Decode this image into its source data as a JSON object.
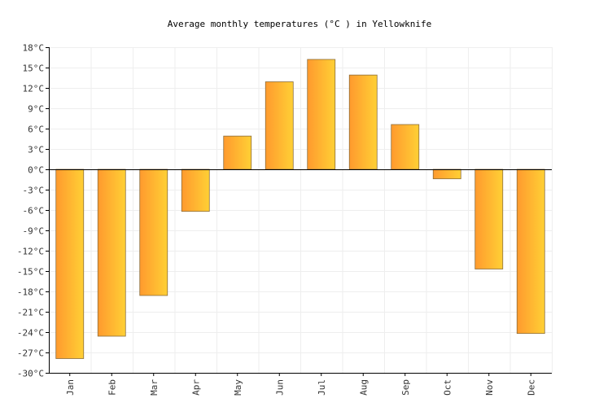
{
  "chart_data": {
    "type": "bar",
    "title": "Average monthly temperatures (°C ) in Yellowknife",
    "xlabel": "",
    "ylabel": "",
    "categories": [
      "Jan",
      "Feb",
      "Mar",
      "Apr",
      "May",
      "Jun",
      "Jul",
      "Aug",
      "Sep",
      "Oct",
      "Nov",
      "Dec"
    ],
    "values": [
      -27.9,
      -24.6,
      -18.6,
      -6.2,
      4.9,
      12.9,
      16.2,
      13.9,
      6.6,
      -1.4,
      -14.7,
      -24.2
    ],
    "ylim": [
      -30,
      18
    ],
    "y_ticks": [
      "18°C",
      "15°C",
      "12°C",
      "9°C",
      "6°C",
      "3°C",
      "0°C",
      "-3°C",
      "-6°C",
      "-9°C",
      "-12°C",
      "-15°C",
      "-18°C",
      "-21°C",
      "-24°C",
      "-27°C",
      "-30°C"
    ],
    "y_tick_values": [
      18,
      15,
      12,
      9,
      6,
      3,
      0,
      -3,
      -6,
      -9,
      -12,
      -15,
      -18,
      -21,
      -24,
      -27,
      -30
    ],
    "grid": true,
    "bar_gradient": [
      "#ff9a2e",
      "#ffd035"
    ]
  }
}
